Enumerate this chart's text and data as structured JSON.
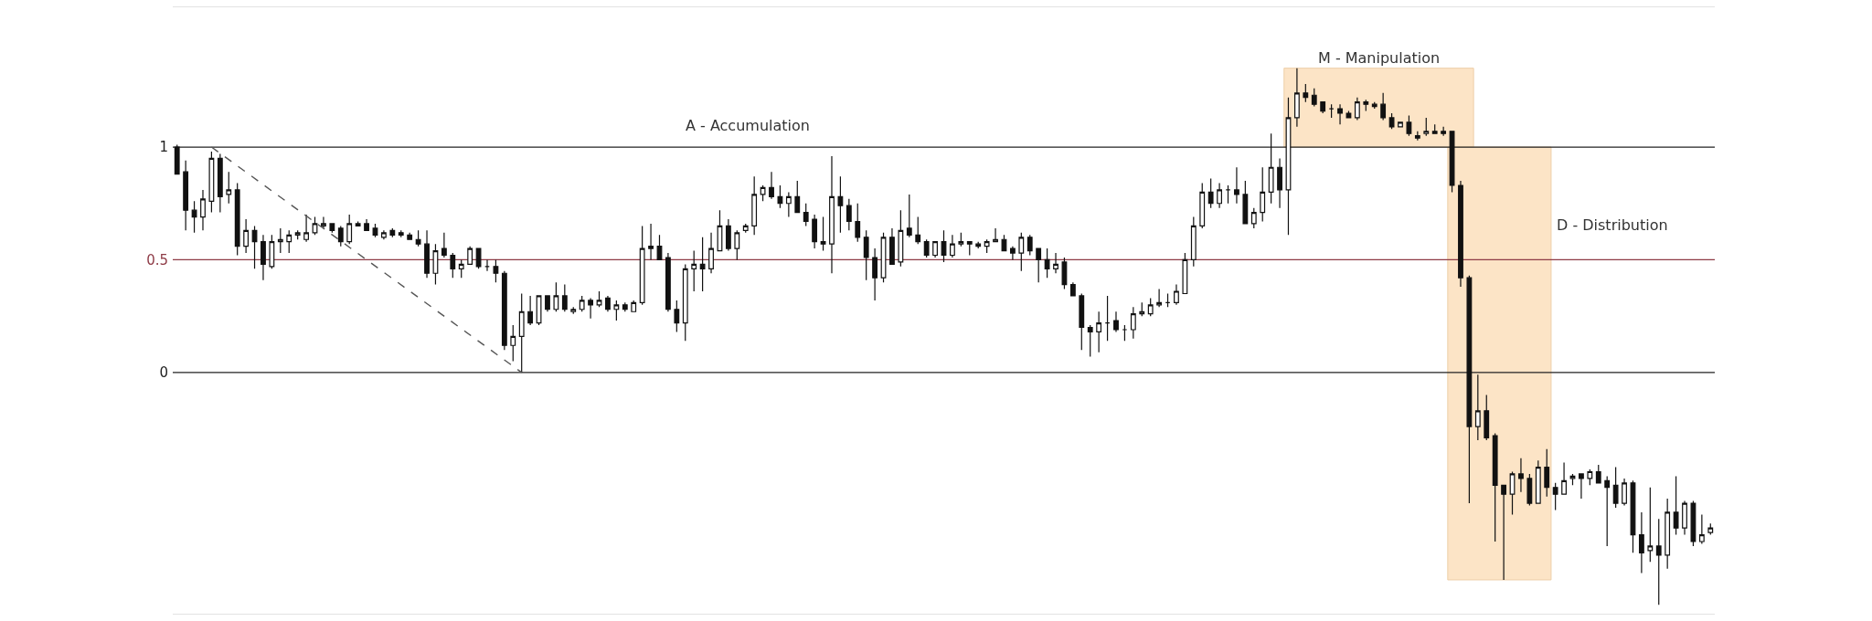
{
  "chart_data": {
    "type": "candlestick",
    "annotations": [
      "A - Accumulation",
      "M - Manipulation",
      "D - Distribution"
    ],
    "categories": [
      null,
      null,
      null,
      null,
      null,
      null,
      null,
      null,
      null,
      null,
      null,
      null,
      null,
      null,
      null,
      null,
      null,
      null,
      null,
      null,
      null,
      null,
      null,
      null,
      null,
      null,
      null,
      null,
      null,
      null,
      null,
      null,
      null,
      null,
      null,
      null,
      null,
      null,
      null,
      null,
      null,
      null,
      null,
      null,
      null,
      null,
      null,
      null,
      null,
      null,
      null,
      null,
      null,
      null,
      null,
      null,
      null,
      null,
      null,
      null,
      null,
      null,
      null,
      null,
      null,
      null,
      null,
      null,
      null,
      null,
      null,
      null,
      null,
      null,
      null,
      null,
      null,
      null,
      null,
      null,
      null,
      null,
      null,
      null,
      null,
      null,
      null,
      null,
      null,
      null,
      null,
      null,
      null,
      null,
      null,
      null,
      null,
      null,
      null,
      null,
      null,
      null,
      null,
      null,
      null,
      null,
      null,
      null,
      null,
      null,
      null,
      null,
      null,
      null,
      null,
      null,
      null,
      null,
      null,
      null,
      null,
      null,
      null,
      null,
      null,
      null,
      null,
      null,
      null,
      null,
      null,
      null,
      null,
      null,
      null,
      null,
      null,
      null,
      null,
      null,
      null,
      null,
      null,
      null,
      null,
      null,
      null,
      null,
      null,
      null,
      null,
      null,
      null,
      null,
      null,
      null,
      null,
      null,
      null,
      null,
      null,
      null,
      null,
      null,
      null,
      null,
      null,
      null,
      null,
      null,
      null,
      null,
      null,
      null,
      null,
      null,
      null,
      null,
      null
    ],
    "ohlc": [
      [
        1.0,
        1.01,
        0.88,
        0.88
      ],
      [
        0.89,
        0.94,
        0.63,
        0.72
      ],
      [
        0.72,
        0.76,
        0.62,
        0.69
      ],
      [
        0.69,
        0.81,
        0.63,
        0.77
      ],
      [
        0.76,
        0.98,
        0.71,
        0.95
      ],
      [
        0.95,
        0.97,
        0.71,
        0.78
      ],
      [
        0.79,
        0.89,
        0.75,
        0.81
      ],
      [
        0.81,
        0.84,
        0.52,
        0.56
      ],
      [
        0.56,
        0.68,
        0.53,
        0.63
      ],
      [
        0.63,
        0.65,
        0.46,
        0.58
      ],
      [
        0.58,
        0.61,
        0.41,
        0.48
      ],
      [
        0.47,
        0.61,
        0.46,
        0.58
      ],
      [
        0.58,
        0.64,
        0.53,
        0.59
      ],
      [
        0.58,
        0.63,
        0.53,
        0.61
      ],
      [
        0.61,
        0.63,
        0.59,
        0.62
      ],
      [
        0.59,
        0.7,
        0.58,
        0.62
      ],
      [
        0.62,
        0.69,
        0.61,
        0.66
      ],
      [
        0.65,
        0.69,
        0.64,
        0.66
      ],
      [
        0.66,
        0.66,
        0.62,
        0.63
      ],
      [
        0.64,
        0.65,
        0.56,
        0.58
      ],
      [
        0.58,
        0.7,
        0.57,
        0.66
      ],
      [
        0.66,
        0.67,
        0.65,
        0.65
      ],
      [
        0.66,
        0.68,
        0.63,
        0.63
      ],
      [
        0.64,
        0.66,
        0.6,
        0.61
      ],
      [
        0.6,
        0.63,
        0.59,
        0.62
      ],
      [
        0.63,
        0.64,
        0.6,
        0.61
      ],
      [
        0.62,
        0.63,
        0.6,
        0.61
      ],
      [
        0.61,
        0.62,
        0.59,
        0.59
      ],
      [
        0.59,
        0.63,
        0.56,
        0.57
      ],
      [
        0.57,
        0.63,
        0.42,
        0.44
      ],
      [
        0.44,
        0.57,
        0.39,
        0.54
      ],
      [
        0.55,
        0.62,
        0.51,
        0.52
      ],
      [
        0.52,
        0.53,
        0.42,
        0.46
      ],
      [
        0.46,
        0.5,
        0.42,
        0.48
      ],
      [
        0.48,
        0.56,
        0.48,
        0.55
      ],
      [
        0.55,
        0.55,
        0.46,
        0.47
      ],
      [
        0.47,
        0.5,
        0.45,
        0.47
      ],
      [
        0.47,
        0.5,
        0.4,
        0.44
      ],
      [
        0.44,
        0.45,
        0.1,
        0.12
      ],
      [
        0.12,
        0.21,
        0.05,
        0.16
      ],
      [
        0.16,
        0.35,
        0.0,
        0.27
      ],
      [
        0.27,
        0.34,
        0.21,
        0.22
      ],
      [
        0.22,
        0.34,
        0.21,
        0.34
      ],
      [
        0.34,
        0.34,
        0.27,
        0.28
      ],
      [
        0.28,
        0.4,
        0.27,
        0.34
      ],
      [
        0.34,
        0.39,
        0.27,
        0.28
      ],
      [
        0.27,
        0.29,
        0.26,
        0.28
      ],
      [
        0.28,
        0.34,
        0.27,
        0.32
      ],
      [
        0.32,
        0.33,
        0.24,
        0.3
      ],
      [
        0.3,
        0.36,
        0.29,
        0.32
      ],
      [
        0.33,
        0.34,
        0.27,
        0.28
      ],
      [
        0.28,
        0.32,
        0.23,
        0.3
      ],
      [
        0.3,
        0.31,
        0.27,
        0.28
      ],
      [
        0.27,
        0.32,
        0.27,
        0.31
      ],
      [
        0.31,
        0.65,
        0.3,
        0.55
      ],
      [
        0.56,
        0.66,
        0.5,
        0.55
      ],
      [
        0.56,
        0.61,
        0.5,
        0.5
      ],
      [
        0.51,
        0.53,
        0.27,
        0.28
      ],
      [
        0.28,
        0.32,
        0.18,
        0.22
      ],
      [
        0.22,
        0.48,
        0.14,
        0.46
      ],
      [
        0.46,
        0.54,
        0.36,
        0.48
      ],
      [
        0.48,
        0.6,
        0.36,
        0.46
      ],
      [
        0.46,
        0.62,
        0.44,
        0.55
      ],
      [
        0.54,
        0.72,
        0.54,
        0.65
      ],
      [
        0.65,
        0.68,
        0.54,
        0.55
      ],
      [
        0.55,
        0.63,
        0.5,
        0.62
      ],
      [
        0.63,
        0.66,
        0.62,
        0.65
      ],
      [
        0.65,
        0.87,
        0.61,
        0.79
      ],
      [
        0.79,
        0.83,
        0.76,
        0.82
      ],
      [
        0.82,
        0.89,
        0.77,
        0.78
      ],
      [
        0.78,
        0.83,
        0.73,
        0.75
      ],
      [
        0.75,
        0.8,
        0.69,
        0.78
      ],
      [
        0.78,
        0.85,
        0.71,
        0.71
      ],
      [
        0.71,
        0.75,
        0.65,
        0.67
      ],
      [
        0.68,
        0.7,
        0.55,
        0.58
      ],
      [
        0.58,
        0.69,
        0.54,
        0.57
      ],
      [
        0.57,
        0.96,
        0.44,
        0.78
      ],
      [
        0.78,
        0.87,
        0.62,
        0.74
      ],
      [
        0.74,
        0.77,
        0.63,
        0.67
      ],
      [
        0.67,
        0.75,
        0.58,
        0.6
      ],
      [
        0.6,
        0.63,
        0.41,
        0.51
      ],
      [
        0.51,
        0.55,
        0.32,
        0.42
      ],
      [
        0.42,
        0.62,
        0.4,
        0.6
      ],
      [
        0.6,
        0.64,
        0.48,
        0.48
      ],
      [
        0.49,
        0.72,
        0.47,
        0.63
      ],
      [
        0.64,
        0.79,
        0.6,
        0.61
      ],
      [
        0.61,
        0.69,
        0.57,
        0.58
      ],
      [
        0.58,
        0.59,
        0.51,
        0.52
      ],
      [
        0.52,
        0.58,
        0.51,
        0.58
      ],
      [
        0.58,
        0.63,
        0.49,
        0.52
      ],
      [
        0.52,
        0.61,
        0.51,
        0.57
      ],
      [
        0.57,
        0.62,
        0.56,
        0.58
      ],
      [
        0.58,
        0.58,
        0.52,
        0.57
      ],
      [
        0.57,
        0.58,
        0.55,
        0.56
      ],
      [
        0.56,
        0.59,
        0.53,
        0.58
      ],
      [
        0.58,
        0.64,
        0.58,
        0.59
      ],
      [
        0.59,
        0.61,
        0.54,
        0.54
      ],
      [
        0.55,
        0.56,
        0.5,
        0.53
      ],
      [
        0.53,
        0.62,
        0.45,
        0.6
      ],
      [
        0.6,
        0.61,
        0.52,
        0.54
      ],
      [
        0.55,
        0.55,
        0.4,
        0.5
      ],
      [
        0.5,
        0.55,
        0.42,
        0.46
      ],
      [
        0.46,
        0.53,
        0.44,
        0.48
      ],
      [
        0.49,
        0.51,
        0.37,
        0.39
      ],
      [
        0.39,
        0.4,
        0.34,
        0.34
      ],
      [
        0.34,
        0.35,
        0.1,
        0.2
      ],
      [
        0.2,
        0.21,
        0.07,
        0.18
      ],
      [
        0.18,
        0.27,
        0.09,
        0.22
      ],
      [
        0.22,
        0.34,
        0.14,
        0.22
      ],
      [
        0.23,
        0.27,
        0.18,
        0.19
      ],
      [
        0.19,
        0.21,
        0.14,
        0.19
      ],
      [
        0.19,
        0.29,
        0.15,
        0.26
      ],
      [
        0.26,
        0.31,
        0.25,
        0.27
      ],
      [
        0.26,
        0.33,
        0.25,
        0.3
      ],
      [
        0.3,
        0.37,
        0.29,
        0.31
      ],
      [
        0.31,
        0.35,
        0.29,
        0.31
      ],
      [
        0.31,
        0.39,
        0.3,
        0.36
      ],
      [
        0.35,
        0.53,
        0.35,
        0.5
      ],
      [
        0.5,
        0.69,
        0.47,
        0.65
      ],
      [
        0.65,
        0.84,
        0.64,
        0.8
      ],
      [
        0.8,
        0.86,
        0.73,
        0.75
      ],
      [
        0.75,
        0.84,
        0.73,
        0.81
      ],
      [
        0.81,
        0.83,
        0.75,
        0.81
      ],
      [
        0.81,
        0.91,
        0.75,
        0.79
      ],
      [
        0.79,
        0.85,
        0.66,
        0.66
      ],
      [
        0.66,
        0.73,
        0.64,
        0.71
      ],
      [
        0.71,
        0.91,
        0.67,
        0.8
      ],
      [
        0.8,
        1.06,
        0.75,
        0.91
      ],
      [
        0.91,
        0.95,
        0.73,
        0.81
      ],
      [
        0.81,
        1.22,
        0.61,
        1.13
      ],
      [
        1.13,
        1.35,
        1.09,
        1.24
      ],
      [
        1.24,
        1.28,
        1.2,
        1.22
      ],
      [
        1.23,
        1.26,
        1.18,
        1.19
      ],
      [
        1.2,
        1.2,
        1.15,
        1.16
      ],
      [
        1.17,
        1.19,
        1.13,
        1.17
      ],
      [
        1.17,
        1.19,
        1.1,
        1.15
      ],
      [
        1.15,
        1.16,
        1.13,
        1.13
      ],
      [
        1.13,
        1.22,
        1.12,
        1.2
      ],
      [
        1.2,
        1.21,
        1.16,
        1.19
      ],
      [
        1.19,
        1.2,
        1.17,
        1.18
      ],
      [
        1.19,
        1.24,
        1.12,
        1.13
      ],
      [
        1.13,
        1.15,
        1.08,
        1.09
      ],
      [
        1.09,
        1.11,
        1.09,
        1.11
      ],
      [
        1.11,
        1.14,
        1.05,
        1.06
      ],
      [
        1.05,
        1.07,
        1.03,
        1.04
      ],
      [
        1.06,
        1.13,
        1.05,
        1.07
      ],
      [
        1.07,
        1.1,
        1.06,
        1.06
      ],
      [
        1.07,
        1.09,
        1.05,
        1.06
      ],
      [
        1.07,
        1.07,
        0.8,
        0.83
      ],
      [
        0.83,
        0.85,
        0.38,
        0.42
      ],
      [
        0.42,
        0.43,
        -0.58,
        -0.24
      ],
      [
        -0.24,
        -0.01,
        -0.3,
        -0.17
      ],
      [
        -0.17,
        -0.1,
        -0.3,
        -0.29
      ],
      [
        -0.28,
        -0.27,
        -0.75,
        -0.5
      ],
      [
        -0.5,
        -0.5,
        -0.92,
        -0.54
      ],
      [
        -0.54,
        -0.44,
        -0.63,
        -0.45
      ],
      [
        -0.45,
        -0.38,
        -0.53,
        -0.47
      ],
      [
        -0.47,
        -0.45,
        -0.59,
        -0.58
      ],
      [
        -0.58,
        -0.39,
        -0.58,
        -0.42
      ],
      [
        -0.42,
        -0.34,
        -0.55,
        -0.51
      ],
      [
        -0.51,
        -0.49,
        -0.61,
        -0.54
      ],
      [
        -0.54,
        -0.4,
        -0.54,
        -0.48
      ],
      [
        -0.47,
        -0.45,
        -0.5,
        -0.46
      ],
      [
        -0.45,
        -0.45,
        -0.56,
        -0.47
      ],
      [
        -0.47,
        -0.43,
        -0.5,
        -0.44
      ],
      [
        -0.44,
        -0.41,
        -0.49,
        -0.49
      ],
      [
        -0.48,
        -0.46,
        -0.77,
        -0.51
      ],
      [
        -0.5,
        -0.42,
        -0.6,
        -0.58
      ],
      [
        -0.58,
        -0.47,
        -0.59,
        -0.49
      ],
      [
        -0.49,
        -0.48,
        -0.8,
        -0.72
      ],
      [
        -0.72,
        -0.62,
        -0.89,
        -0.8
      ],
      [
        -0.79,
        -0.51,
        -0.84,
        -0.77
      ],
      [
        -0.77,
        -0.65,
        -1.03,
        -0.81
      ],
      [
        -0.81,
        -0.56,
        -0.87,
        -0.62
      ],
      [
        -0.62,
        -0.46,
        -0.72,
        -0.69
      ],
      [
        -0.69,
        -0.57,
        -0.72,
        -0.58
      ],
      [
        -0.58,
        -0.57,
        -0.77,
        -0.75
      ],
      [
        -0.75,
        -0.63,
        -0.76,
        -0.72
      ],
      [
        -0.71,
        -0.67,
        -0.72,
        -0.69
      ]
    ],
    "series": [
      {
        "type": "line",
        "color": "#555555",
        "values": [
          null,
          null,
          null,
          null,
          1,
          null,
          null,
          null,
          null,
          null,
          null,
          null,
          null,
          null,
          null,
          null,
          null,
          null,
          null,
          null,
          null,
          null,
          null,
          null,
          null,
          null,
          null,
          null,
          null,
          null,
          null,
          null,
          null,
          null,
          null,
          null,
          null,
          null,
          null,
          null,
          0,
          null,
          null,
          null,
          null,
          null,
          null,
          null,
          null,
          null,
          null,
          null,
          null,
          null,
          null,
          null,
          null,
          null,
          null,
          null,
          null,
          null,
          null,
          null,
          null,
          null,
          null,
          null,
          null,
          null,
          null,
          null,
          null,
          null,
          null,
          null,
          null,
          null,
          null,
          null,
          null,
          null,
          null,
          null,
          null,
          null,
          null,
          null,
          null,
          null,
          null,
          null,
          null,
          null,
          null,
          null,
          null,
          null,
          null,
          null,
          null,
          null,
          null,
          null,
          null,
          null,
          null,
          null,
          null,
          null,
          null,
          null,
          null,
          null,
          null,
          null,
          null,
          null,
          null,
          null,
          null,
          null,
          null,
          null,
          null,
          null,
          null,
          null,
          null,
          null,
          null,
          null,
          null,
          null,
          null,
          null,
          null,
          null,
          null,
          null,
          null,
          null,
          null,
          null,
          null,
          null,
          null,
          null,
          null,
          null,
          null,
          null,
          null,
          null,
          null,
          null,
          null,
          null,
          null,
          null,
          null,
          null,
          null,
          null,
          null,
          null,
          null,
          null,
          null,
          null,
          null,
          null,
          null,
          null,
          null,
          null,
          null,
          null,
          null
        ]
      }
    ],
    "line_style": "dashed",
    "ref_lines": [
      {
        "axis": "y",
        "value": 1,
        "color": "#222222"
      },
      {
        "axis": "y",
        "value": 0.5,
        "color": "#8e3b46"
      },
      {
        "axis": "y",
        "value": 0,
        "color": "#222222"
      }
    ],
    "ylim": [
      -1.07,
      1.62
    ],
    "yticks": [
      0,
      0.5,
      1
    ],
    "tick_labels": "y",
    "grid": false
  }
}
